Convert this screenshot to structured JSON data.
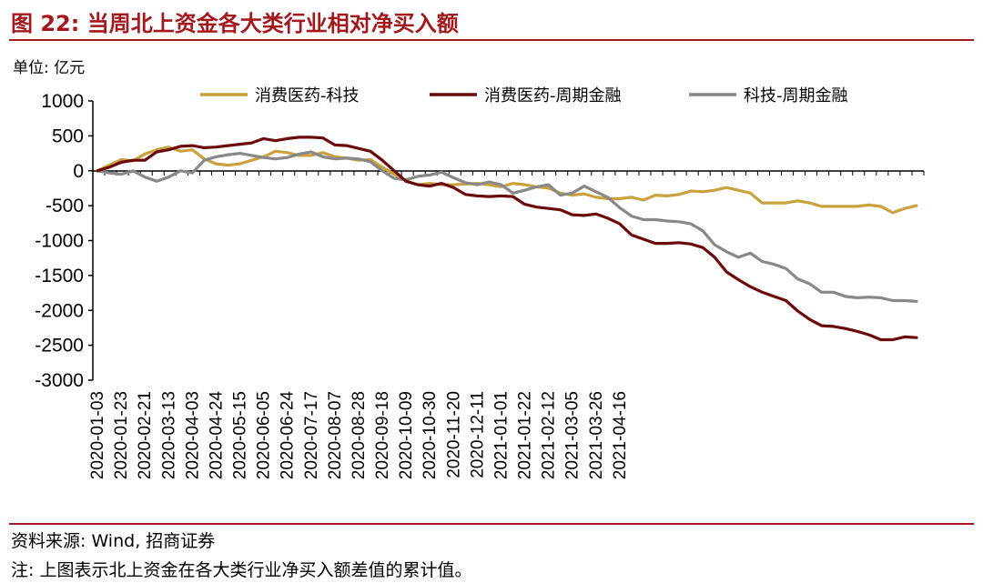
{
  "header": {
    "title": "图 22:  当周北上资金各大类行业相对净买入额"
  },
  "unit_label": "单位: 亿元",
  "footer": {
    "source": "资料来源: Wind, 招商证券",
    "note": "注: 上图表示北上资金在各大类行业净买入额差值的累计值。"
  },
  "chart_data": {
    "type": "line",
    "title": "",
    "xlabel": "",
    "ylabel": "",
    "ylim": [
      -3000,
      1000
    ],
    "yticks": [
      1000,
      500,
      0,
      -500,
      -1000,
      -1500,
      -2000,
      -2500,
      -3000
    ],
    "grid": false,
    "legend_position": "top",
    "x_tick_labels": [
      "2020-01-03",
      "2020-01-23",
      "2020-02-21",
      "2020-03-13",
      "2020-04-03",
      "2020-04-24",
      "2020-05-15",
      "2020-06-05",
      "2020-06-24",
      "2020-07-17",
      "2020-08-07",
      "2020-08-28",
      "2020-09-18",
      "2020-10-09",
      "2020-10-30",
      "2020-11-20",
      "2020-12-11",
      "2021-01-01",
      "2021-01-22",
      "2021-02-12",
      "2021-03-05",
      "2021-03-26",
      "2021-04-16"
    ],
    "x_tick_positions": [
      0,
      2,
      4,
      6,
      8,
      10,
      12,
      14,
      16,
      18,
      20,
      22,
      24,
      26,
      28,
      30,
      32,
      34,
      36,
      38,
      40,
      42,
      44
    ],
    "series": [
      {
        "name": "消费医药-科技",
        "color": "#c9a23f",
        "values": [
          0,
          80,
          160,
          140,
          240,
          300,
          340,
          280,
          300,
          170,
          100,
          80,
          100,
          150,
          200,
          280,
          260,
          220,
          220,
          260,
          200,
          180,
          150,
          160,
          50,
          -50,
          -150,
          -200,
          -180,
          -200,
          -200,
          -190,
          -180,
          -200,
          -230,
          -180,
          -200,
          -230,
          -250,
          -320,
          -350,
          -330,
          -380,
          -400,
          -400,
          -380,
          -420,
          -350,
          -360,
          -340,
          -290,
          -300,
          -280,
          -240,
          -280,
          -320,
          -460,
          -460,
          -460,
          -430,
          -460,
          -510,
          -510,
          -510,
          -510,
          -490,
          -510,
          -600,
          -540,
          -500
        ]
      },
      {
        "name": "消费医药-周期金融",
        "color": "#6b0a0a",
        "values": [
          0,
          50,
          120,
          150,
          150,
          270,
          300,
          350,
          360,
          330,
          340,
          360,
          380,
          400,
          460,
          430,
          460,
          480,
          480,
          470,
          370,
          360,
          320,
          280,
          150,
          0,
          -150,
          -200,
          -220,
          -180,
          -240,
          -340,
          -360,
          -370,
          -360,
          -370,
          -480,
          -520,
          -540,
          -560,
          -630,
          -640,
          -620,
          -680,
          -760,
          -920,
          -980,
          -1040,
          -1040,
          -1030,
          -1050,
          -1100,
          -1240,
          -1450,
          -1560,
          -1660,
          -1740,
          -1800,
          -1860,
          -2010,
          -2130,
          -2220,
          -2230,
          -2260,
          -2300,
          -2350,
          -2420,
          -2420,
          -2380,
          -2390
        ]
      },
      {
        "name": "科技-周期金融",
        "color": "#888888",
        "values": [
          0,
          -30,
          -50,
          0,
          -90,
          -150,
          -90,
          0,
          -30,
          150,
          200,
          230,
          250,
          220,
          190,
          170,
          190,
          240,
          270,
          200,
          170,
          180,
          170,
          130,
          0,
          -110,
          -130,
          -80,
          -60,
          -20,
          -100,
          -170,
          -200,
          -160,
          -200,
          -320,
          -280,
          -230,
          -200,
          -350,
          -320,
          -220,
          -300,
          -380,
          -530,
          -650,
          -700,
          -700,
          -720,
          -730,
          -760,
          -860,
          -1060,
          -1160,
          -1240,
          -1180,
          -1300,
          -1340,
          -1400,
          -1550,
          -1620,
          -1740,
          -1740,
          -1800,
          -1820,
          -1810,
          -1820,
          -1860,
          -1860,
          -1870
        ]
      }
    ]
  }
}
